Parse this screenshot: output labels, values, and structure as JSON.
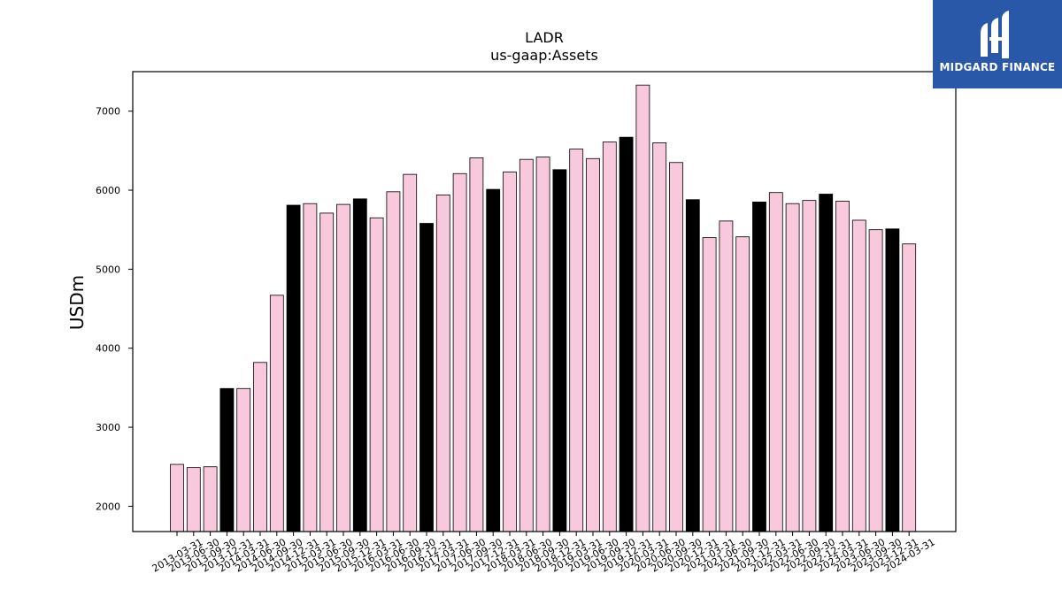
{
  "logo": {
    "text": "MIDGARD FINANCE",
    "icon": "midgard-logo-icon",
    "background": "#2a58a8"
  },
  "chart_data": {
    "type": "bar",
    "title": "LADR",
    "subtitle": "us-gaap:Assets",
    "ylabel": "USDm",
    "xlabel": "",
    "ylim": [
      1680,
      7500
    ],
    "yticks": [
      2000,
      3000,
      4000,
      5000,
      6000,
      7000
    ],
    "grid": false,
    "colors": {
      "fill": "#f8c8dc",
      "highlight": "#000000",
      "edge": "#000000"
    },
    "categories": [
      "2013-03-31",
      "2013-06-30",
      "2013-09-30",
      "2013-12-31",
      "2014-03-31",
      "2014-06-30",
      "2014-09-30",
      "2014-12-31",
      "2015-03-31",
      "2015-06-30",
      "2015-09-30",
      "2015-12-31",
      "2016-03-31",
      "2016-06-30",
      "2016-09-30",
      "2016-12-31",
      "2017-03-31",
      "2017-06-30",
      "2017-09-30",
      "2017-12-31",
      "2018-03-31",
      "2018-06-30",
      "2018-09-30",
      "2018-12-31",
      "2019-03-31",
      "2019-06-30",
      "2019-09-30",
      "2019-12-31",
      "2020-03-31",
      "2020-06-30",
      "2020-09-30",
      "2020-12-31",
      "2021-03-31",
      "2021-06-30",
      "2021-09-30",
      "2021-12-31",
      "2022-03-31",
      "2022-06-30",
      "2022-09-30",
      "2022-12-31",
      "2023-03-31",
      "2023-06-30",
      "2023-09-30",
      "2023-12-31",
      "2024-03-31"
    ],
    "values": [
      2530,
      2490,
      2500,
      3490,
      3490,
      3820,
      4670,
      5810,
      5830,
      5710,
      5820,
      5890,
      5650,
      5980,
      6200,
      5580,
      5940,
      6210,
      6410,
      6010,
      6230,
      6390,
      6420,
      6260,
      6520,
      6400,
      6610,
      6670,
      7330,
      6600,
      6350,
      5880,
      5400,
      5610,
      5410,
      5850,
      5970,
      5830,
      5870,
      5950,
      5860,
      5620,
      5500,
      5510,
      5320
    ],
    "highlighted": [
      false,
      false,
      false,
      true,
      false,
      false,
      false,
      true,
      false,
      false,
      false,
      true,
      false,
      false,
      false,
      true,
      false,
      false,
      false,
      true,
      false,
      false,
      false,
      true,
      false,
      false,
      false,
      true,
      false,
      false,
      false,
      true,
      false,
      false,
      false,
      true,
      false,
      false,
      false,
      true,
      false,
      false,
      false,
      true,
      false
    ]
  }
}
